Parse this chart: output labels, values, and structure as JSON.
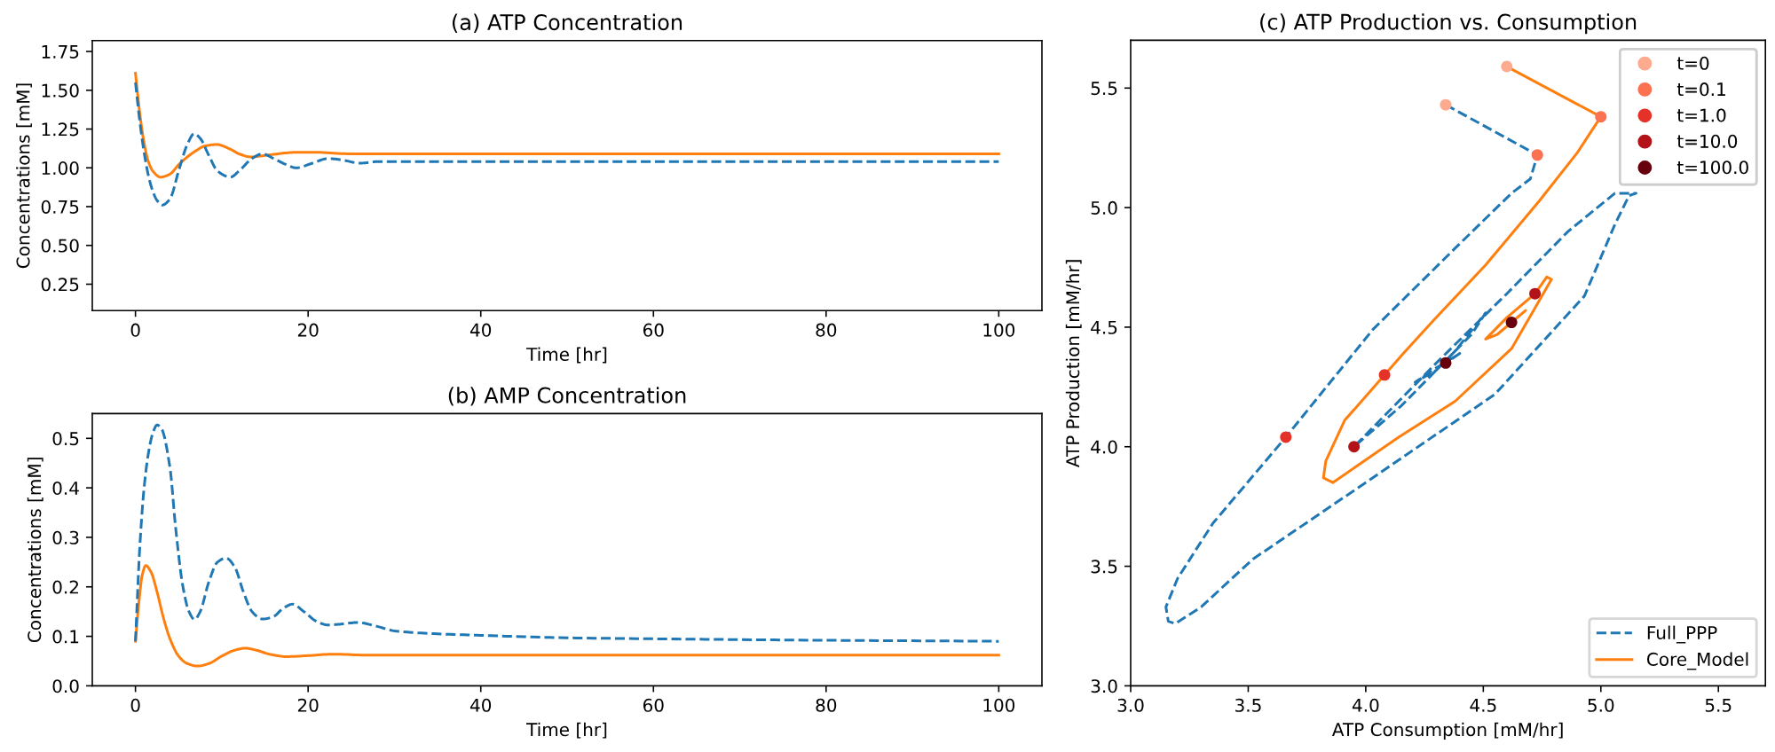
{
  "chart_data": [
    {
      "type": "line",
      "title": "(a) ATP Concentration",
      "xlabel": "Time [hr]",
      "ylabel": "Concentrations [mM]",
      "xlim": [
        -5,
        105
      ],
      "xticks": [
        0,
        20,
        40,
        60,
        80,
        100
      ],
      "ylim": [
        0.08,
        1.82
      ],
      "yticks": [
        0.25,
        {
          "value": 0.5,
          "label": "0.50"
        },
        0.75,
        {
          "value": 1,
          "label": "1.00"
        },
        1.25,
        {
          "value": 1.5,
          "label": "1.50"
        },
        1.75
      ],
      "series": [
        {
          "color": "#1f77b4",
          "line_style": "dashed",
          "x": [
            0,
            0.5,
            1,
            1.5,
            2,
            2.5,
            3.1,
            4,
            5,
            6,
            6.8,
            7.5,
            8.5,
            9.5,
            11,
            12,
            13.5,
            14.7,
            16,
            17.5,
            18.6,
            20.5,
            22.3,
            24,
            26,
            28,
            35,
            40,
            60,
            80,
            100
          ],
          "values": [
            1.55,
            1.3,
            1.1,
            0.95,
            0.85,
            0.79,
            0.76,
            0.8,
            0.98,
            1.15,
            1.22,
            1.19,
            1.08,
            0.98,
            0.94,
            0.98,
            1.06,
            1.09,
            1.06,
            1.02,
            1.0,
            1.03,
            1.06,
            1.05,
            1.03,
            1.04,
            1.04,
            1.04,
            1.04,
            1.04,
            1.04
          ]
        },
        {
          "color": "#ff7f0e",
          "line_style": "solid",
          "x": [
            0,
            0.5,
            1,
            1.5,
            2,
            2.9,
            4,
            5,
            6,
            7,
            8,
            9.4,
            11,
            12,
            13.4,
            15,
            16.5,
            18.5,
            21,
            25,
            30,
            100
          ],
          "values": [
            1.61,
            1.35,
            1.16,
            1.04,
            0.98,
            0.94,
            0.96,
            1.02,
            1.07,
            1.11,
            1.14,
            1.15,
            1.12,
            1.09,
            1.07,
            1.08,
            1.09,
            1.1,
            1.1,
            1.09,
            1.09,
            1.09
          ]
        }
      ]
    },
    {
      "type": "line",
      "title": "(b) AMP Concentration",
      "xlabel": "Time [hr]",
      "ylabel": "Concentrations [mM]",
      "xlim": [
        -5,
        105
      ],
      "xticks": [
        0,
        20,
        40,
        60,
        80,
        100
      ],
      "ylim": [
        0,
        0.55
      ],
      "yticks": [
        {
          "value": 0,
          "label": "0.0"
        },
        0.1,
        0.2,
        0.3,
        0.4,
        0.5
      ],
      "series": [
        {
          "color": "#1f77b4",
          "line_style": "dashed",
          "x": [
            0,
            0.5,
            1,
            1.5,
            2,
            2.5,
            3,
            4,
            4.65,
            5.5,
            6.2,
            6.85,
            7.5,
            8.5,
            9.5,
            10.5,
            11.5,
            12.5,
            13.5,
            14.7,
            16,
            17,
            18.2,
            19.5,
            21,
            22.3,
            24,
            25.7,
            28,
            30,
            35,
            40,
            50,
            60,
            80,
            100
          ],
          "values": [
            0.09,
            0.28,
            0.4,
            0.47,
            0.51,
            0.527,
            0.52,
            0.44,
            0.32,
            0.2,
            0.15,
            0.134,
            0.15,
            0.21,
            0.25,
            0.258,
            0.24,
            0.19,
            0.15,
            0.135,
            0.14,
            0.155,
            0.165,
            0.15,
            0.13,
            0.123,
            0.125,
            0.128,
            0.12,
            0.111,
            0.105,
            0.102,
            0.097,
            0.095,
            0.092,
            0.09
          ]
        },
        {
          "color": "#ff7f0e",
          "line_style": "solid",
          "x": [
            0,
            0.4,
            0.8,
            1.2,
            1.8,
            2.5,
            3.2,
            4,
            5,
            6,
            7.2,
            8.5,
            10,
            11.5,
            12.7,
            14,
            15.5,
            17.5,
            20,
            23,
            27,
            30,
            100
          ],
          "values": [
            0.09,
            0.17,
            0.225,
            0.243,
            0.23,
            0.19,
            0.14,
            0.095,
            0.06,
            0.045,
            0.04,
            0.045,
            0.06,
            0.072,
            0.076,
            0.072,
            0.064,
            0.059,
            0.061,
            0.064,
            0.062,
            0.062,
            0.062
          ]
        }
      ]
    },
    {
      "type": "line",
      "title": "(c) ATP Production vs. Consumption",
      "xlabel": "ATP Consumption [mM/hr]",
      "ylabel": "ATP Production [mM/hr]",
      "xlim": [
        3,
        5.7
      ],
      "xticks": [
        {
          "value": 3,
          "label": "3.0"
        },
        3.5,
        {
          "value": 4,
          "label": "4.0"
        },
        4.5,
        {
          "value": 5,
          "label": "5.0"
        },
        5.5
      ],
      "ylim": [
        3,
        5.7
      ],
      "yticks": [
        {
          "value": 3,
          "label": "3.0"
        },
        3.5,
        {
          "value": 4,
          "label": "4.0"
        },
        4.5,
        {
          "value": 5,
          "label": "5.0"
        },
        5.5
      ],
      "legend": [
        "bottom right",
        "top right"
      ],
      "series": [
        {
          "name": "Full_PPP",
          "color": "#1f77b4",
          "line_style": "dashed",
          "x": [
            4.34,
            4.73,
            4.7,
            4.62,
            4.38,
            4.03,
            3.66,
            3.35,
            3.2,
            3.15,
            3.16,
            3.19,
            3.3,
            3.52,
            4.03,
            4.55,
            4.93,
            5.06,
            5.12,
            5.15,
            5.06,
            4.86,
            4.6,
            4.3,
            4.1,
            3.95,
            4.15,
            4.38,
            4.51,
            4.45,
            4.3,
            4.21,
            4.3,
            4.4,
            4.34
          ],
          "values": [
            5.43,
            5.22,
            5.12,
            5.06,
            4.83,
            4.49,
            4.04,
            3.68,
            3.45,
            3.33,
            3.27,
            3.26,
            3.33,
            3.53,
            3.87,
            4.22,
            4.63,
            4.93,
            5.05,
            5.06,
            5.06,
            4.9,
            4.64,
            4.35,
            4.15,
            4.0,
            4.17,
            4.4,
            4.56,
            4.47,
            4.32,
            4.27,
            4.33,
            4.39,
            4.35
          ]
        },
        {
          "name": "Core_Model",
          "color": "#ff7f0e",
          "line_style": "solid",
          "x": [
            4.6,
            5.0,
            4.9,
            4.74,
            4.51,
            4.29,
            4.16,
            4.08,
            3.91,
            3.83,
            3.82,
            3.86,
            4.14,
            4.38,
            4.62,
            4.72,
            4.79,
            4.77,
            4.72,
            4.6,
            4.51,
            4.56,
            4.68,
            4.62
          ],
          "values": [
            5.59,
            5.38,
            5.23,
            5.03,
            4.76,
            4.53,
            4.39,
            4.3,
            4.11,
            3.94,
            3.87,
            3.85,
            4.04,
            4.19,
            4.41,
            4.58,
            4.7,
            4.71,
            4.64,
            4.54,
            4.45,
            4.47,
            4.57,
            4.52
          ]
        },
        {
          "type": "scatter",
          "name": "t=0",
          "color": "#fcab8f",
          "marker": "circle",
          "x": [
            4.34,
            4.6
          ],
          "values": [
            5.43,
            5.59
          ]
        },
        {
          "type": "scatter",
          "name": "t=0.1",
          "color": "#fb7151",
          "marker": "circle",
          "x": [
            4.73,
            5.0
          ],
          "values": [
            5.22,
            5.38
          ]
        },
        {
          "type": "scatter",
          "name": "t=1.0",
          "color": "#e53228",
          "marker": "circle",
          "x": [
            3.66,
            4.08
          ],
          "values": [
            4.04,
            4.3
          ]
        },
        {
          "type": "scatter",
          "name": "t=10.0",
          "color": "#b21218",
          "marker": "circle",
          "x": [
            3.95,
            4.72
          ],
          "values": [
            4.0,
            4.64
          ]
        },
        {
          "type": "scatter",
          "name": "t=100.0",
          "color": "#67000d",
          "marker": "circle",
          "x": [
            4.34,
            4.62
          ],
          "values": [
            4.35,
            4.52
          ]
        }
      ]
    }
  ]
}
